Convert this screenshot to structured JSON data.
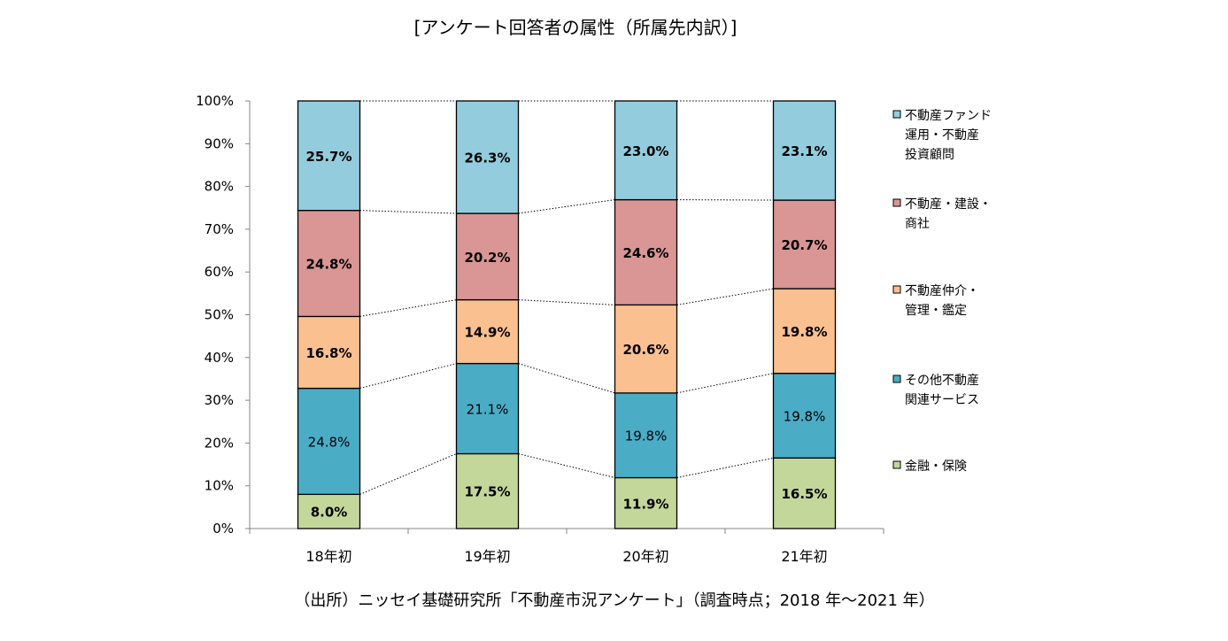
{
  "chart_data": {
    "type": "bar",
    "stacked": true,
    "title": "[アンケート回答者の属性（所属先内訳）]",
    "source": "（出所）ニッセイ基礎研究所「不動産市況アンケート」（調査時点；2018 年～2021 年）",
    "categories": [
      "18年初",
      "19年初",
      "20年初",
      "21年初"
    ],
    "y_ticks": [
      "0%",
      "10%",
      "20%",
      "30%",
      "40%",
      "50%",
      "60%",
      "70%",
      "80%",
      "90%",
      "100%"
    ],
    "ylim": [
      0,
      100
    ],
    "grid": false,
    "legend_position": "right",
    "series_lines": "dotted connectors between stack boundaries",
    "series": [
      {
        "name": "金融・保険",
        "color": "#c4d79b",
        "bold": true,
        "values": [
          8.0,
          17.5,
          11.9,
          16.5
        ],
        "labels": [
          "8.0%",
          "17.5%",
          "11.9%",
          "16.5%"
        ]
      },
      {
        "name": "その他不動産関連サービス",
        "legend_lines": [
          "その他不動産",
          "関連サービス"
        ],
        "color": "#4bacc6",
        "bold": false,
        "values": [
          24.8,
          21.1,
          19.8,
          19.8
        ],
        "labels": [
          "24.8%",
          "21.1%",
          "19.8%",
          "19.8%"
        ]
      },
      {
        "name": "不動産仲介・管理・鑑定",
        "legend_lines": [
          "不動産仲介・",
          "管理・鑑定"
        ],
        "color": "#fac090",
        "bold": true,
        "values": [
          16.8,
          14.9,
          20.6,
          19.8
        ],
        "labels": [
          "16.8%",
          "14.9%",
          "20.6%",
          "19.8%"
        ]
      },
      {
        "name": "不動産・建設・商社",
        "legend_lines": [
          "不動産・建設・",
          "商社"
        ],
        "color": "#d99694",
        "bold": true,
        "values": [
          24.8,
          20.2,
          24.6,
          20.7
        ],
        "labels": [
          "24.8%",
          "20.2%",
          "24.6%",
          "20.7%"
        ]
      },
      {
        "name": "不動産ファンド運用・不動産投資顧問",
        "legend_lines": [
          "不動産ファンド",
          "運用・不動産",
          "投資顧問"
        ],
        "color": "#93cddd",
        "bold": true,
        "values": [
          25.7,
          26.3,
          23.0,
          23.1
        ],
        "labels": [
          "25.7%",
          "26.3%",
          "23.0%",
          "23.1%"
        ]
      }
    ]
  }
}
